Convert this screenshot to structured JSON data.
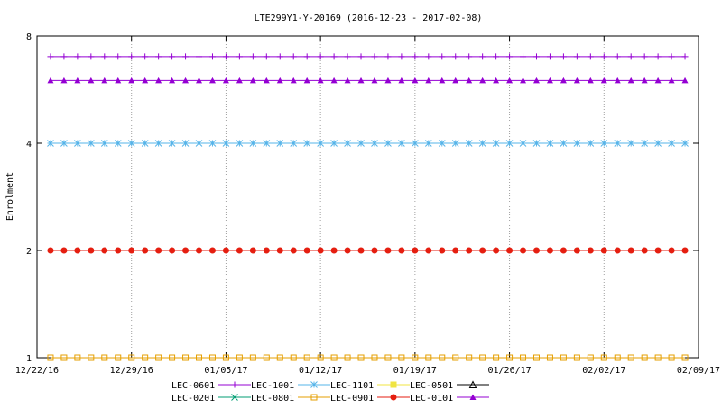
{
  "chart_data": {
    "type": "line",
    "title": "LTE299Y1-Y-20169 (2016-12-23 - 2017-02-08)",
    "xlabel": "",
    "ylabel": "Enrolment",
    "y_scale": "log2",
    "ylim": [
      1,
      8
    ],
    "y_ticks": [
      {
        "value": 1,
        "label": "1"
      },
      {
        "value": 2,
        "label": "2"
      },
      {
        "value": 4,
        "label": "4"
      },
      {
        "value": 8,
        "label": "8"
      }
    ],
    "xlim": [
      "2016-12-22",
      "2017-02-09"
    ],
    "x_ticks": [
      {
        "date": "2016-12-22",
        "label": "12/22/16"
      },
      {
        "date": "2016-12-29",
        "label": "12/29/16"
      },
      {
        "date": "2017-01-05",
        "label": "01/05/17"
      },
      {
        "date": "2017-01-12",
        "label": "01/12/17"
      },
      {
        "date": "2017-01-19",
        "label": "01/19/17"
      },
      {
        "date": "2017-01-26",
        "label": "01/26/17"
      },
      {
        "date": "2017-02-02",
        "label": "02/02/17"
      },
      {
        "date": "2017-02-09",
        "label": "02/09/17"
      }
    ],
    "x_start": "2016-12-23",
    "x_end": "2017-02-08",
    "grid": "vertical dotted at x ticks",
    "legend_position": "bottom",
    "series": [
      {
        "name": "LEC-0601",
        "color": "#9400d3",
        "marker": "plus",
        "value": 7
      },
      {
        "name": "LEC-0201",
        "color": "#009e73",
        "marker": "cross",
        "value": null
      },
      {
        "name": "LEC-1001",
        "color": "#56b4e9",
        "marker": "star",
        "value": 4
      },
      {
        "name": "LEC-0801",
        "color": "#e69f00",
        "marker": "square-open",
        "value": 1
      },
      {
        "name": "LEC-1101",
        "color": "#f0e442",
        "marker": "square-filled",
        "value": null
      },
      {
        "name": "LEC-0901",
        "color": "#e51e10",
        "marker": "circle-filled",
        "value": 2
      },
      {
        "name": "LEC-0501",
        "color": "#000000",
        "marker": "triangle-open",
        "value": null
      },
      {
        "name": "LEC-0101",
        "color": "#9400d3",
        "marker": "triangle-filled",
        "value": 6
      }
    ]
  }
}
